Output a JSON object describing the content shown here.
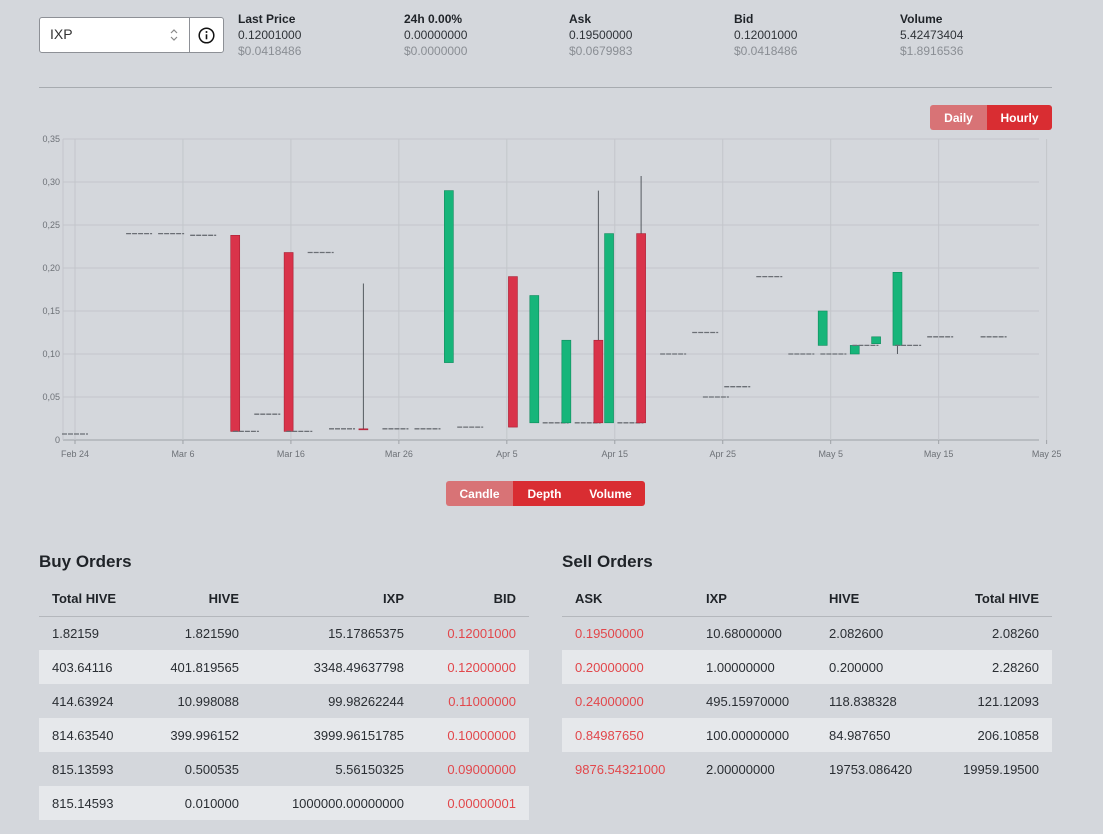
{
  "ticker": {
    "token": "IXP",
    "stats": [
      {
        "label": "Last Price",
        "value": "0.12001000",
        "usd": "$0.0418486"
      },
      {
        "label": "24h 0.00%",
        "value": "0.00000000",
        "usd": "$0.0000000"
      },
      {
        "label": "Ask",
        "value": "0.19500000",
        "usd": "$0.0679983"
      },
      {
        "label": "Bid",
        "value": "0.12001000",
        "usd": "$0.0418486"
      },
      {
        "label": "Volume",
        "value": "5.42473404",
        "usd": "$1.8916536"
      }
    ]
  },
  "interval_toggle": {
    "daily": "Daily",
    "hourly": "Hourly",
    "active": "Hourly"
  },
  "chart_toggle": {
    "candle": "Candle",
    "depth": "Depth",
    "volume": "Volume",
    "active": [
      "Depth",
      "Volume"
    ]
  },
  "colors": {
    "up": "#17b57a",
    "down": "#d9334a",
    "accent": "#d92d32"
  },
  "chart_data": {
    "type": "candlestick",
    "y_ticks": [
      "0",
      "0,05",
      "0,10",
      "0,15",
      "0,20",
      "0,25",
      "0,30",
      "0,35"
    ],
    "ylim": [
      0,
      0.35
    ],
    "x_ticks": [
      "Feb 24",
      "Mar 6",
      "Mar 16",
      "Mar 26",
      "Apr 5",
      "Apr 15",
      "Apr 25",
      "May 5",
      "May 15",
      "May 25"
    ],
    "x_range": [
      "2024-02-24",
      "2024-05-25"
    ],
    "grid": true,
    "candles": [
      {
        "date": "2024-02-24",
        "open": 0.007,
        "close": 0.007,
        "high": 0.007,
        "low": 0.007
      },
      {
        "date": "2024-03-01",
        "open": 0.24,
        "close": 0.24,
        "high": 0.24,
        "low": 0.24
      },
      {
        "date": "2024-03-04",
        "open": 0.24,
        "close": 0.24,
        "high": 0.24,
        "low": 0.24
      },
      {
        "date": "2024-03-07",
        "open": 0.238,
        "close": 0.238,
        "high": 0.238,
        "low": 0.238
      },
      {
        "date": "2024-03-10",
        "open": 0.238,
        "close": 0.01,
        "high": 0.238,
        "low": 0.01
      },
      {
        "date": "2024-03-11",
        "open": 0.01,
        "close": 0.01,
        "high": 0.01,
        "low": 0.01
      },
      {
        "date": "2024-03-13",
        "open": 0.03,
        "close": 0.03,
        "high": 0.03,
        "low": 0.03
      },
      {
        "date": "2024-03-15",
        "open": 0.218,
        "close": 0.01,
        "high": 0.218,
        "low": 0.01
      },
      {
        "date": "2024-03-16",
        "open": 0.01,
        "close": 0.01,
        "high": 0.01,
        "low": 0.01
      },
      {
        "date": "2024-03-18",
        "open": 0.218,
        "close": 0.218,
        "high": 0.218,
        "low": 0.218
      },
      {
        "date": "2024-03-20",
        "open": 0.013,
        "close": 0.013,
        "high": 0.013,
        "low": 0.013
      },
      {
        "date": "2024-03-22",
        "open": 0.013,
        "close": 0.012,
        "high": 0.182,
        "low": 0.012
      },
      {
        "date": "2024-03-25",
        "open": 0.013,
        "close": 0.013,
        "high": 0.013,
        "low": 0.013
      },
      {
        "date": "2024-03-28",
        "open": 0.013,
        "close": 0.013,
        "high": 0.013,
        "low": 0.013
      },
      {
        "date": "2024-03-30",
        "open": 0.09,
        "close": 0.29,
        "high": 0.29,
        "low": 0.09
      },
      {
        "date": "2024-04-01",
        "open": 0.015,
        "close": 0.015,
        "high": 0.015,
        "low": 0.015
      },
      {
        "date": "2024-04-05",
        "open": 0.19,
        "close": 0.015,
        "high": 0.19,
        "low": 0.015
      },
      {
        "date": "2024-04-07",
        "open": 0.02,
        "close": 0.168,
        "high": 0.168,
        "low": 0.02
      },
      {
        "date": "2024-04-09",
        "open": 0.02,
        "close": 0.02,
        "high": 0.02,
        "low": 0.02
      },
      {
        "date": "2024-04-10",
        "open": 0.02,
        "close": 0.116,
        "high": 0.116,
        "low": 0.02
      },
      {
        "date": "2024-04-12",
        "open": 0.02,
        "close": 0.02,
        "high": 0.02,
        "low": 0.02
      },
      {
        "date": "2024-04-13",
        "open": 0.116,
        "close": 0.02,
        "high": 0.29,
        "low": 0.02
      },
      {
        "date": "2024-04-14",
        "open": 0.02,
        "close": 0.24,
        "high": 0.24,
        "low": 0.02
      },
      {
        "date": "2024-04-16",
        "open": 0.02,
        "close": 0.02,
        "high": 0.02,
        "low": 0.02
      },
      {
        "date": "2024-04-17",
        "open": 0.24,
        "close": 0.02,
        "high": 0.307,
        "low": 0.02
      },
      {
        "date": "2024-04-20",
        "open": 0.1,
        "close": 0.1,
        "high": 0.1,
        "low": 0.1
      },
      {
        "date": "2024-04-23",
        "open": 0.125,
        "close": 0.125,
        "high": 0.125,
        "low": 0.125
      },
      {
        "date": "2024-04-24",
        "open": 0.05,
        "close": 0.05,
        "high": 0.05,
        "low": 0.05
      },
      {
        "date": "2024-04-26",
        "open": 0.062,
        "close": 0.062,
        "high": 0.062,
        "low": 0.062
      },
      {
        "date": "2024-04-29",
        "open": 0.19,
        "close": 0.19,
        "high": 0.19,
        "low": 0.19
      },
      {
        "date": "2024-05-02",
        "open": 0.1,
        "close": 0.1,
        "high": 0.1,
        "low": 0.1
      },
      {
        "date": "2024-05-04",
        "open": 0.11,
        "close": 0.15,
        "high": 0.15,
        "low": 0.11
      },
      {
        "date": "2024-05-05",
        "open": 0.1,
        "close": 0.1,
        "high": 0.1,
        "low": 0.1
      },
      {
        "date": "2024-05-07",
        "open": 0.1,
        "close": 0.11,
        "high": 0.11,
        "low": 0.1
      },
      {
        "date": "2024-05-08",
        "open": 0.11,
        "close": 0.11,
        "high": 0.11,
        "low": 0.11
      },
      {
        "date": "2024-05-09",
        "open": 0.112,
        "close": 0.12,
        "high": 0.12,
        "low": 0.112
      },
      {
        "date": "2024-05-11",
        "open": 0.11,
        "close": 0.195,
        "high": 0.195,
        "low": 0.1
      },
      {
        "date": "2024-05-12",
        "open": 0.11,
        "close": 0.11,
        "high": 0.11,
        "low": 0.11
      },
      {
        "date": "2024-05-15",
        "open": 0.12,
        "close": 0.12,
        "high": 0.12,
        "low": 0.12
      },
      {
        "date": "2024-05-20",
        "open": 0.12,
        "close": 0.12,
        "high": 0.12,
        "low": 0.12
      }
    ]
  },
  "buy_orders": {
    "title": "Buy Orders",
    "columns": [
      "Total HIVE",
      "HIVE",
      "IXP",
      "BID"
    ],
    "rows": [
      [
        "1.82159",
        "1.821590",
        "15.17865375",
        "0.12001000"
      ],
      [
        "403.64116",
        "401.819565",
        "3348.49637798",
        "0.12000000"
      ],
      [
        "414.63924",
        "10.998088",
        "99.98262244",
        "0.11000000"
      ],
      [
        "814.63540",
        "399.996152",
        "3999.96151785",
        "0.10000000"
      ],
      [
        "815.13593",
        "0.500535",
        "5.56150325",
        "0.09000000"
      ],
      [
        "815.14593",
        "0.010000",
        "1000000.00000000",
        "0.00000001"
      ]
    ]
  },
  "sell_orders": {
    "title": "Sell Orders",
    "columns": [
      "ASK",
      "IXP",
      "HIVE",
      "Total HIVE"
    ],
    "rows": [
      [
        "0.19500000",
        "10.68000000",
        "2.082600",
        "2.08260"
      ],
      [
        "0.20000000",
        "1.00000000",
        "0.200000",
        "2.28260"
      ],
      [
        "0.24000000",
        "495.15970000",
        "118.838328",
        "121.12093"
      ],
      [
        "0.84987650",
        "100.00000000",
        "84.987650",
        "206.10858"
      ],
      [
        "9876.54321000",
        "2.00000000",
        "19753.086420",
        "19959.19500"
      ]
    ]
  }
}
